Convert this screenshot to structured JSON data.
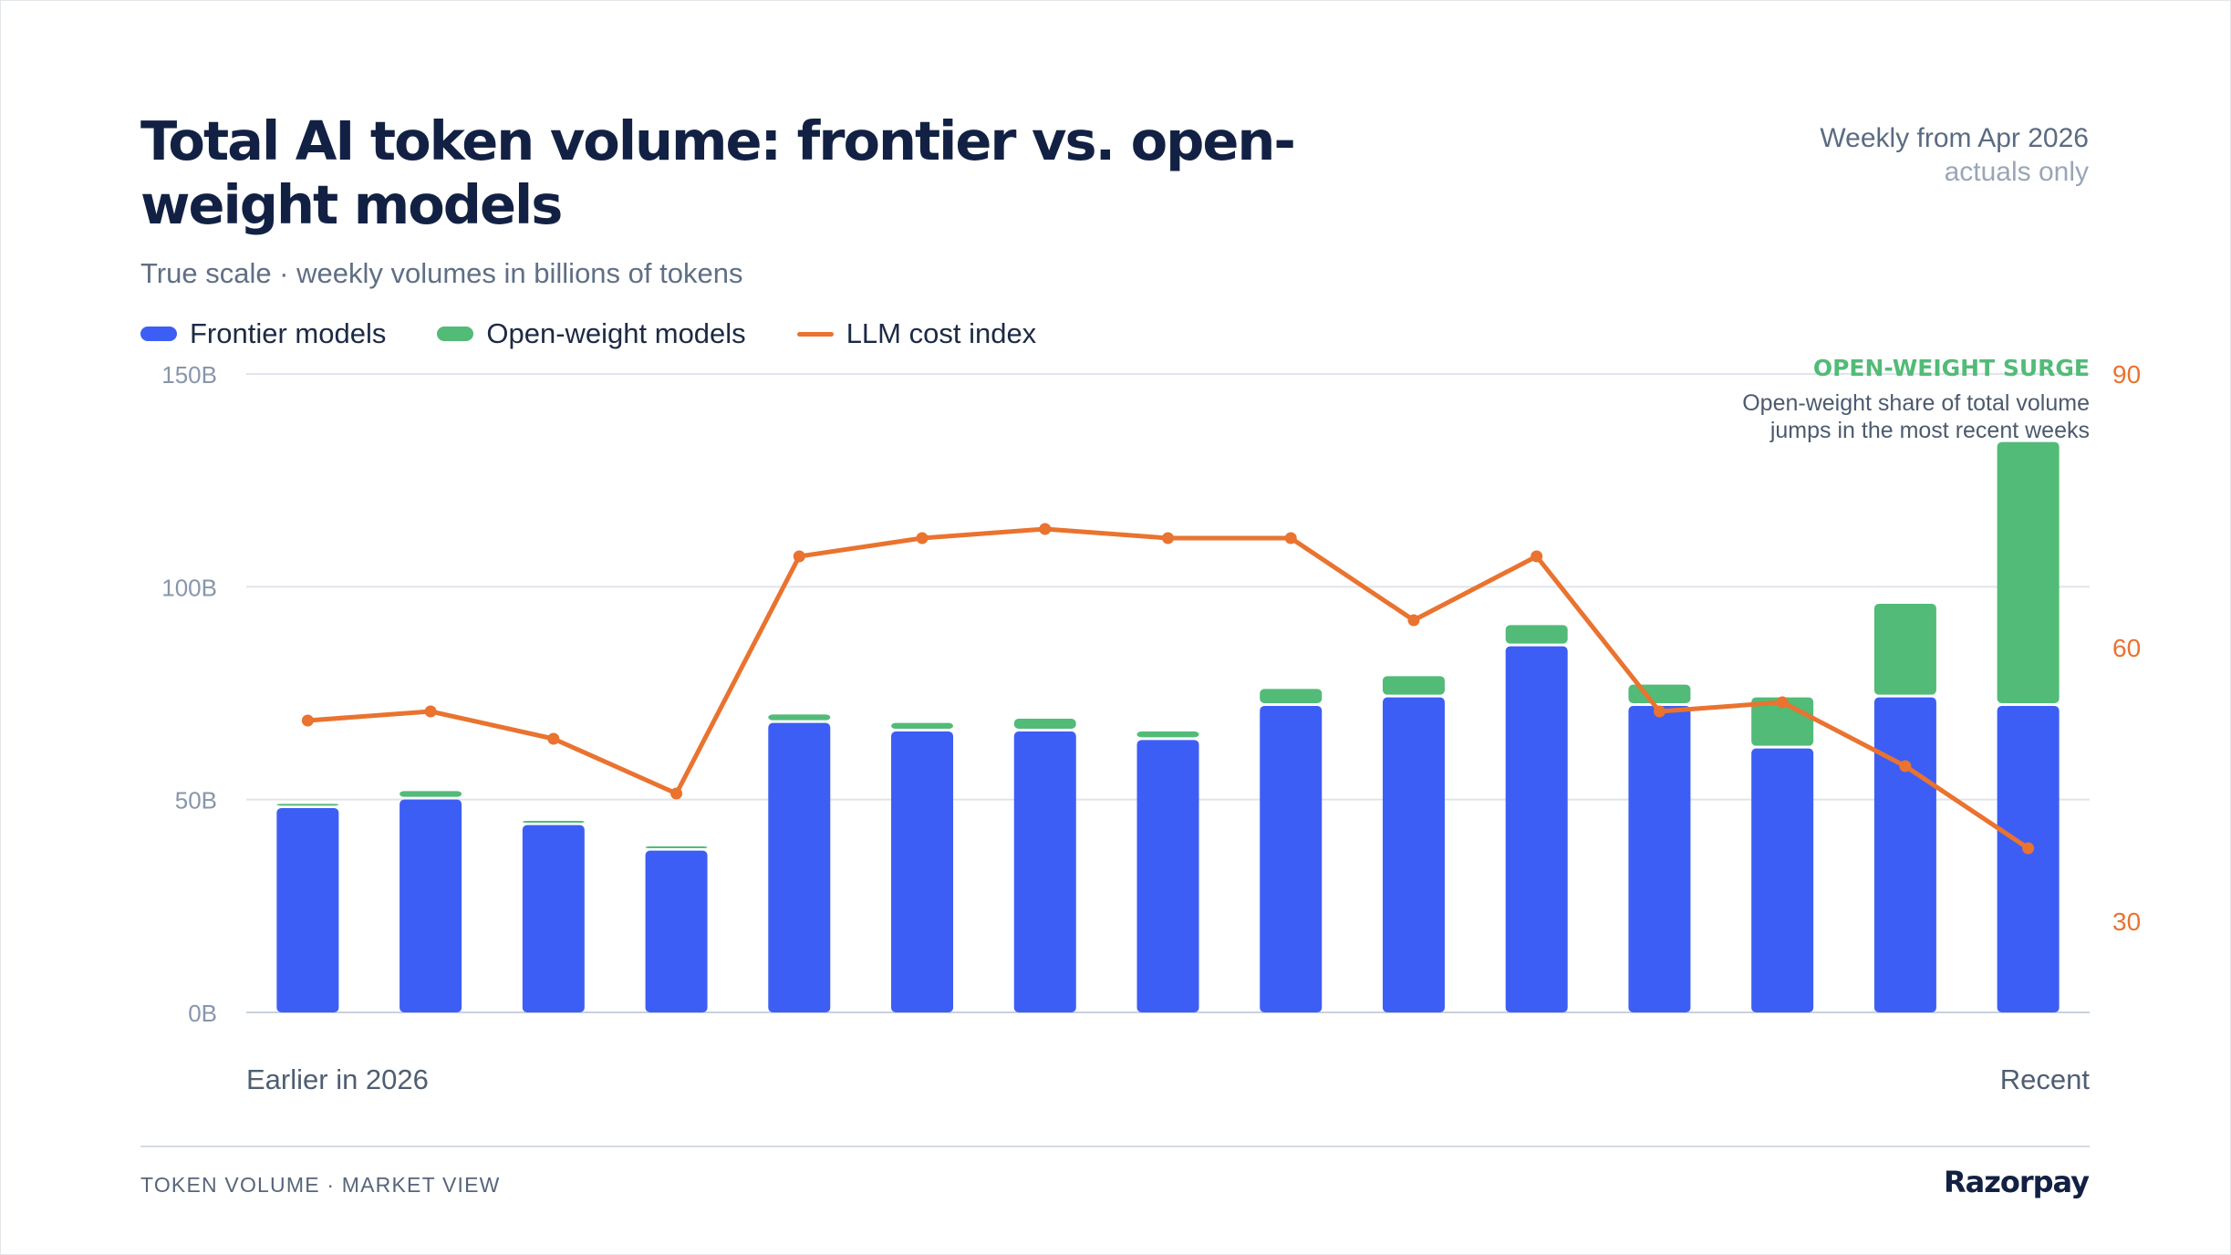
{
  "title": "Total AI token volume: frontier vs. open-weight models",
  "subtitle": "True scale · weekly volumes in billions of tokens",
  "period_label": "Weekly from Apr 2026",
  "period_note": "actuals only",
  "legend": [
    {
      "label": "Frontier models",
      "color": "#3d5ef5",
      "kind": "bar"
    },
    {
      "label": "Open-weight models",
      "color": "#52bb77",
      "kind": "bar"
    },
    {
      "label": "LLM cost index",
      "color": "#e9732f",
      "kind": "line"
    }
  ],
  "annotation": {
    "title": "OPEN-WEIGHT SURGE",
    "line1": "Open-weight share of total volume",
    "line2": "jumps in the most recent weeks"
  },
  "footer": {
    "left": "TOKEN VOLUME · MARKET VIEW",
    "brand": "Razorpay"
  },
  "colors": {
    "frontier": "#3d5ef5",
    "open_weight": "#52bb77",
    "cost": "#e9732f",
    "text": "#122143",
    "grid": "#dfe4ec",
    "axis_text": "#8896ab",
    "right_axis_text": "#e9732f"
  },
  "chart_data": {
    "type": "bar",
    "stacked": true,
    "x_start_label": "Earlier in 2026",
    "x_end_label": "Recent",
    "y_ticks": [
      "0B",
      "50B",
      "100B",
      "150B"
    ],
    "ylim": [
      0,
      150
    ],
    "y2_ticks": [
      "30",
      "60",
      "90"
    ],
    "y2lim": [
      20,
      90
    ],
    "grid": true,
    "legend_position": "top-left",
    "series": [
      {
        "name": "Frontier models",
        "type": "bar",
        "values": [
          48,
          50,
          44,
          38,
          68,
          66,
          66,
          64,
          72,
          74,
          86,
          72,
          62,
          74,
          72
        ]
      },
      {
        "name": "Open-weight models",
        "type": "bar",
        "values": [
          1,
          2,
          1,
          1,
          2,
          2,
          3,
          2,
          4,
          5,
          5,
          5,
          12,
          22,
          62
        ]
      },
      {
        "name": "LLM cost index",
        "type": "line",
        "axis": "right",
        "values": [
          52,
          53,
          50,
          44,
          70,
          72,
          73,
          72,
          72,
          63,
          70,
          53,
          54,
          47,
          38
        ]
      }
    ]
  }
}
